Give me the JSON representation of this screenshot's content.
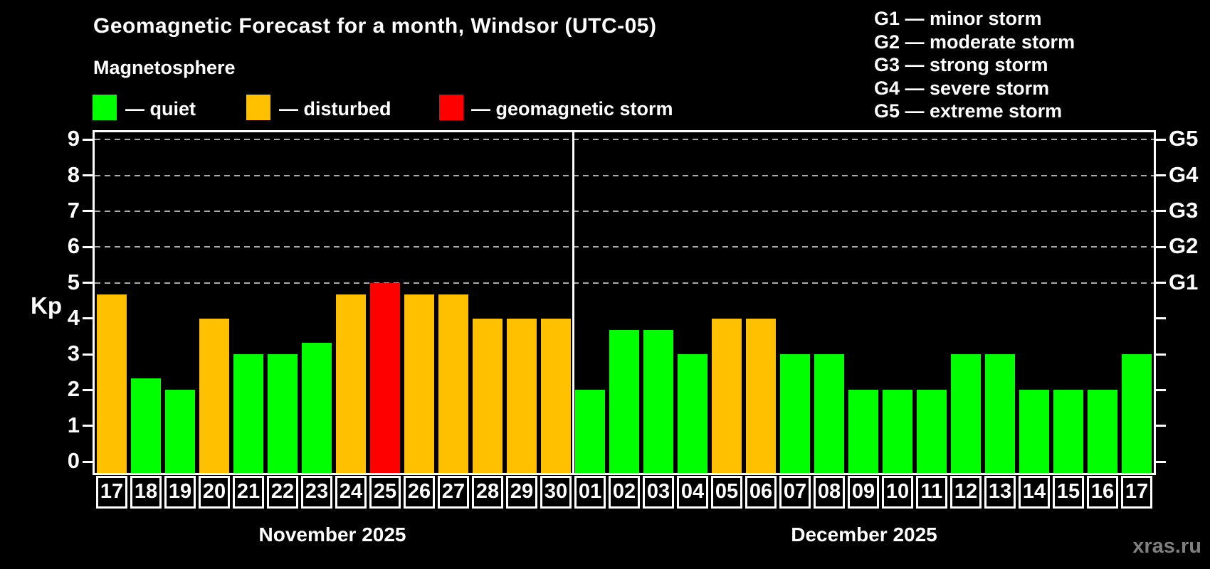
{
  "title": "Geomagnetic Forecast for a month, Windsor (UTC-05)",
  "subtitle": "Magnetosphere",
  "legend": {
    "quiet": "— quiet",
    "disturbed": "— disturbed",
    "storm": "— geomagnetic storm"
  },
  "g_legend": [
    "G1 — minor storm",
    "G2 — moderate storm",
    "G3 — strong storm",
    "G4 — severe storm",
    "G5 — extreme storm"
  ],
  "watermark": "xras.ru",
  "colors": {
    "quiet": "#00ff00",
    "disturbed": "#ffc000",
    "storm": "#ff0000",
    "grid": "#aaaaaa",
    "axis": "#ffffff",
    "background": "#000000",
    "watermark": "#7f7f7f"
  },
  "chart_data": {
    "type": "bar",
    "ylabel": "Kp",
    "ylim": [
      0,
      9
    ],
    "yticks": [
      0,
      1,
      2,
      3,
      4,
      5,
      6,
      7,
      8,
      9
    ],
    "gridlines_at": [
      5,
      6,
      7,
      8,
      9
    ],
    "grid": "dashed, only at storm levels 5-9",
    "legend_position": "top",
    "right_tick_labels": {
      "5": "G1",
      "6": "G2",
      "7": "G3",
      "8": "G4",
      "9": "G5"
    },
    "months": [
      {
        "label": "November 2025",
        "days": [
          {
            "day": "17",
            "kp": 4.67,
            "status": "disturbed"
          },
          {
            "day": "18",
            "kp": 2.33,
            "status": "quiet"
          },
          {
            "day": "19",
            "kp": 2.0,
            "status": "quiet"
          },
          {
            "day": "20",
            "kp": 4.0,
            "status": "disturbed"
          },
          {
            "day": "21",
            "kp": 3.0,
            "status": "quiet"
          },
          {
            "day": "22",
            "kp": 3.0,
            "status": "quiet"
          },
          {
            "day": "23",
            "kp": 3.33,
            "status": "quiet"
          },
          {
            "day": "24",
            "kp": 4.67,
            "status": "disturbed"
          },
          {
            "day": "25",
            "kp": 5.0,
            "status": "storm"
          },
          {
            "day": "26",
            "kp": 4.67,
            "status": "disturbed"
          },
          {
            "day": "27",
            "kp": 4.67,
            "status": "disturbed"
          },
          {
            "day": "28",
            "kp": 4.0,
            "status": "disturbed"
          },
          {
            "day": "29",
            "kp": 4.0,
            "status": "disturbed"
          },
          {
            "day": "30",
            "kp": 4.0,
            "status": "disturbed"
          }
        ]
      },
      {
        "label": "December 2025",
        "days": [
          {
            "day": "01",
            "kp": 2.0,
            "status": "quiet"
          },
          {
            "day": "02",
            "kp": 3.67,
            "status": "quiet"
          },
          {
            "day": "03",
            "kp": 3.67,
            "status": "quiet"
          },
          {
            "day": "04",
            "kp": 3.0,
            "status": "quiet"
          },
          {
            "day": "05",
            "kp": 4.0,
            "status": "disturbed"
          },
          {
            "day": "06",
            "kp": 4.0,
            "status": "disturbed"
          },
          {
            "day": "07",
            "kp": 3.0,
            "status": "quiet"
          },
          {
            "day": "08",
            "kp": 3.0,
            "status": "quiet"
          },
          {
            "day": "09",
            "kp": 2.0,
            "status": "quiet"
          },
          {
            "day": "10",
            "kp": 2.0,
            "status": "quiet"
          },
          {
            "day": "11",
            "kp": 2.0,
            "status": "quiet"
          },
          {
            "day": "12",
            "kp": 3.0,
            "status": "quiet"
          },
          {
            "day": "13",
            "kp": 3.0,
            "status": "quiet"
          },
          {
            "day": "14",
            "kp": 2.0,
            "status": "quiet"
          },
          {
            "day": "15",
            "kp": 2.0,
            "status": "quiet"
          },
          {
            "day": "16",
            "kp": 2.0,
            "status": "quiet"
          },
          {
            "day": "17",
            "kp": 3.0,
            "status": "quiet"
          }
        ]
      }
    ]
  }
}
